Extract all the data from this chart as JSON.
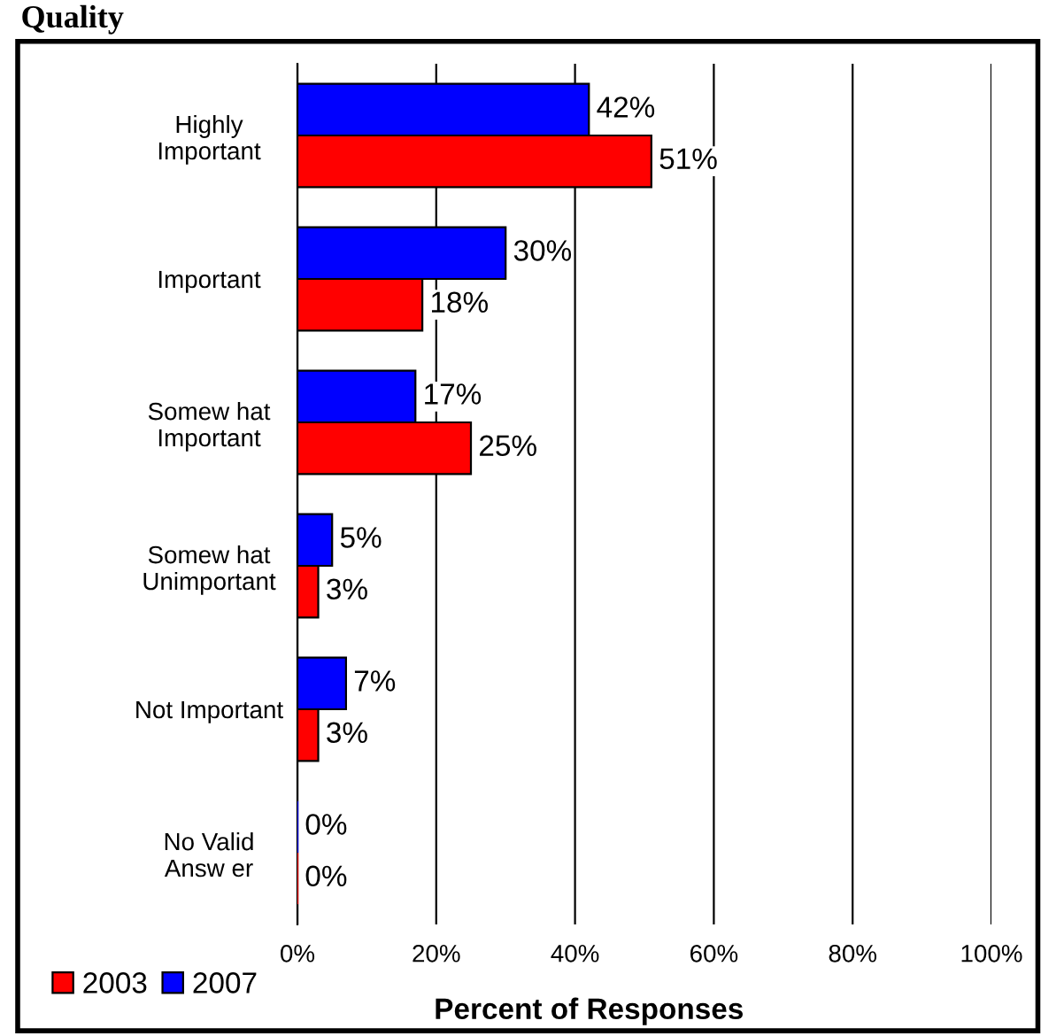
{
  "chart_data": {
    "type": "bar",
    "orientation": "horizontal",
    "title": "Quality",
    "xlabel": "Percent of Responses",
    "categories": [
      "Highly\nImportant",
      "Important",
      "Somew hat\nImportant",
      "Somew hat\nUnimportant",
      "Not Important",
      "No Valid\nAnsw er"
    ],
    "series": [
      {
        "name": "2003",
        "color": "#ff0000",
        "values": [
          51,
          18,
          25,
          3,
          3,
          0
        ],
        "value_labels": [
          "51%",
          "18%",
          "25%",
          "3%",
          "3%",
          "0%"
        ]
      },
      {
        "name": "2007",
        "color": "#0000ff",
        "values": [
          42,
          30,
          17,
          5,
          7,
          0
        ],
        "value_labels": [
          "42%",
          "30%",
          "17%",
          "5%",
          "7%",
          "0%"
        ]
      }
    ],
    "xlim": [
      0,
      100
    ],
    "xticks": [
      {
        "value": 0,
        "label": "0%"
      },
      {
        "value": 20,
        "label": "20%"
      },
      {
        "value": 40,
        "label": "40%"
      },
      {
        "value": 60,
        "label": "60%"
      },
      {
        "value": 80,
        "label": "80%"
      },
      {
        "value": 100,
        "label": "100%"
      }
    ],
    "grid": "x",
    "legend": "bottom left"
  }
}
